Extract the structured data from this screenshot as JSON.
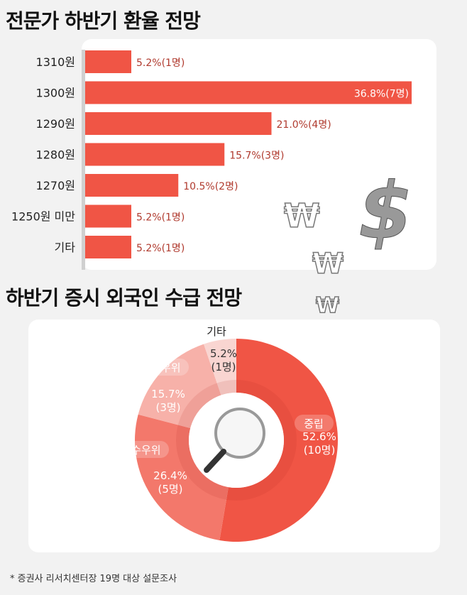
{
  "chart_data": [
    {
      "type": "bar",
      "orientation": "horizontal",
      "title": "전문가 하반기 환율 전망",
      "categories": [
        "1310원",
        "1300원",
        "1290원",
        "1280원",
        "1270원",
        "1250원 미만",
        "기타"
      ],
      "values": [
        5.2,
        36.8,
        21.0,
        15.7,
        10.5,
        5.2,
        5.2
      ],
      "labels": [
        "5.2%(1명)",
        "36.8%(7명)",
        "21.0%(4명)",
        "15.7%(3명)",
        "10.5%(2명)",
        "5.2%(1명)",
        "5.2%(1명)"
      ],
      "color": "#f05545",
      "label_color": "#b03a2e"
    },
    {
      "type": "pie",
      "donut": true,
      "title": "하반기 증시 외국인 수급 전망",
      "slices": [
        {
          "name": "중립",
          "value": 52.6,
          "pct": "52.6%",
          "count": "(10명)",
          "color": "#f05545"
        },
        {
          "name": "매수우위",
          "value": 26.4,
          "pct": "26.4%",
          "count": "(5명)",
          "color": "#f3786b"
        },
        {
          "name": "매도우위",
          "value": 15.7,
          "pct": "15.7%",
          "count": "(3명)",
          "color": "#f7b1a9"
        },
        {
          "name": "기타",
          "value": 5.2,
          "pct": "5.2%",
          "count": "(1명)",
          "color": "#f9d5d1"
        }
      ]
    }
  ],
  "footnote": "* 증권사 리서치센터장 19명 대상 설문조사"
}
